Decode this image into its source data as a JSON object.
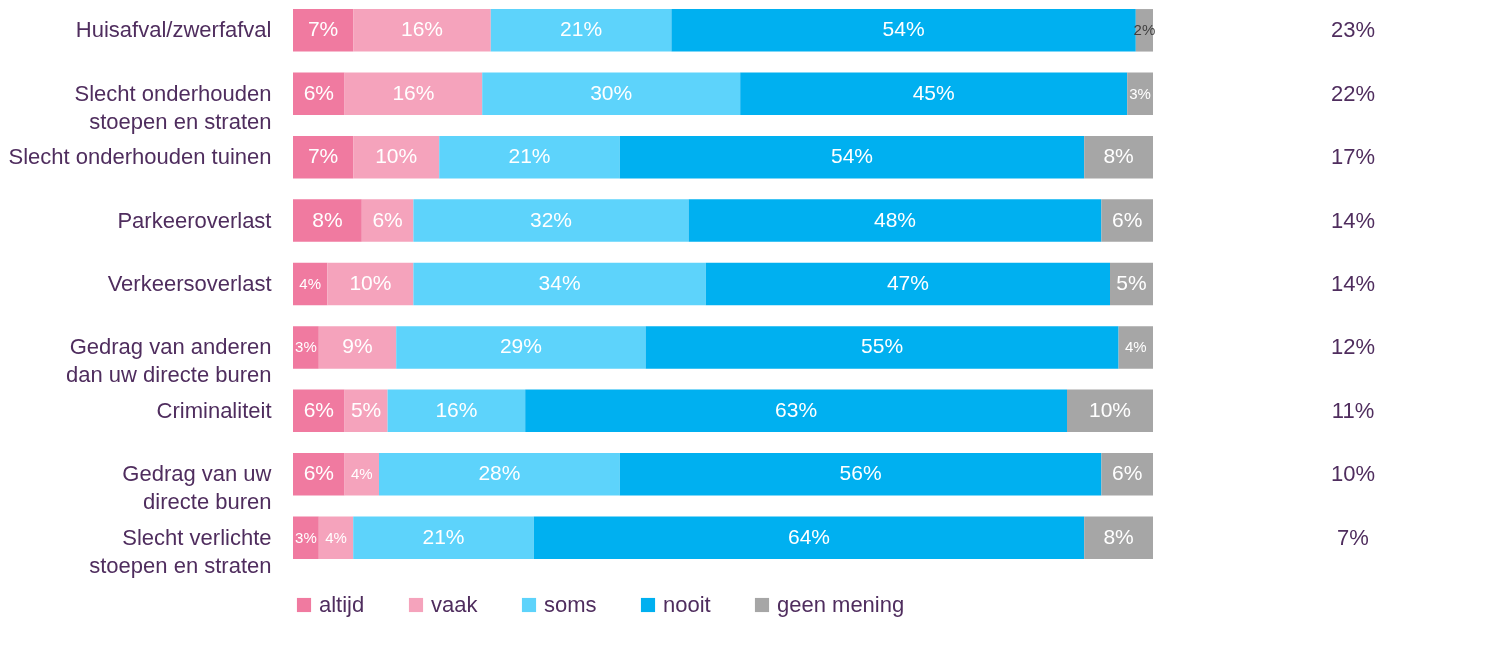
{
  "chart_data": {
    "type": "bar",
    "orientation": "horizontal",
    "stacked": true,
    "legend": "bottom",
    "categories": [
      "Huisafval/zwerfafval",
      "Slecht onderhouden\nstoepen en straten",
      "Slecht onderhouden tuinen",
      "Parkeeroverlast",
      "Verkeersoverlast",
      "Gedrag van anderen\ndan uw directe buren",
      "Criminaliteit",
      "Gedrag van uw\ndirecte buren",
      "Slecht verlichte\nstoepen en straten"
    ],
    "series": [
      {
        "name": "altijd",
        "color": "#f07aa0",
        "values": [
          7,
          6,
          7,
          8,
          4,
          3,
          6,
          6,
          3
        ],
        "value_labels": [
          "7%",
          "6%",
          "7%",
          "8%",
          "4%",
          "3%",
          "6%",
          "6%",
          "3%"
        ]
      },
      {
        "name": "vaak",
        "color": "#f5a3bc",
        "values": [
          16,
          16,
          10,
          6,
          10,
          9,
          5,
          4,
          4
        ],
        "value_labels": [
          "16%",
          "16%",
          "10%",
          "6%",
          "10%",
          "9%",
          "5%",
          "4%",
          "4%"
        ]
      },
      {
        "name": "soms",
        "color": "#5dd3fb",
        "values": [
          21,
          30,
          21,
          32,
          34,
          29,
          16,
          28,
          21
        ],
        "value_labels": [
          "21%",
          "30%",
          "21%",
          "32%",
          "34%",
          "29%",
          "16%",
          "28%",
          "21%"
        ]
      },
      {
        "name": "nooit",
        "color": "#00b0f0",
        "values": [
          54,
          45,
          54,
          48,
          47,
          55,
          63,
          56,
          64
        ],
        "value_labels": [
          "54%",
          "45%",
          "54%",
          "48%",
          "47%",
          "55%",
          "63%",
          "56%",
          "64%"
        ]
      },
      {
        "name": "geen mening",
        "color": "#a6a6a6",
        "values": [
          2,
          3,
          8,
          6,
          5,
          4,
          10,
          6,
          8
        ],
        "value_labels": [
          "2%",
          "3%",
          "8%",
          "6%",
          "5%",
          "4%",
          "10%",
          "6%",
          "8%"
        ]
      }
    ],
    "annotations": [
      "23%",
      "22%",
      "17%",
      "14%",
      "14%",
      "12%",
      "11%",
      "10%",
      "7%"
    ]
  }
}
